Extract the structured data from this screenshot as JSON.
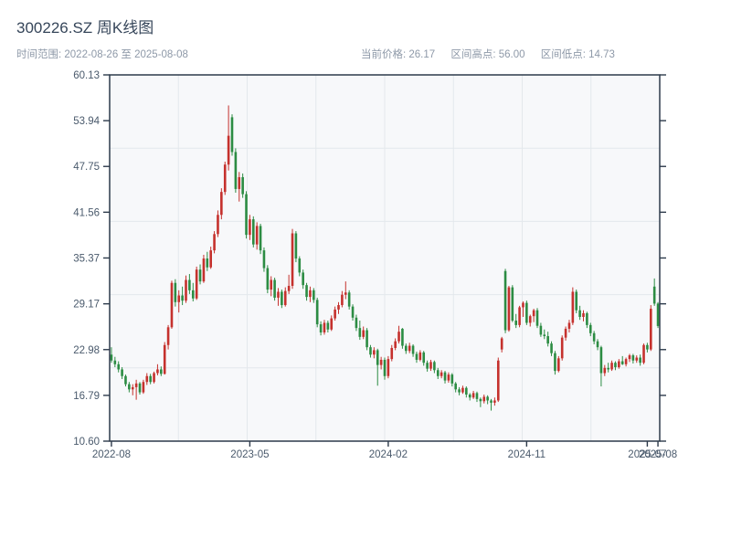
{
  "header": {
    "title": "300226.SZ 周K线图",
    "time_range": "时间范围: 2022-08-26 至 2025-08-08",
    "stats": {
      "price": "当前价格: 26.17",
      "high": "区间高点: 56.00",
      "low": "区间低点: 14.73"
    }
  },
  "chart_data": {
    "type": "candlestick",
    "title": "300226.SZ 周K线图",
    "period": "weekly",
    "date_start": "2022-08-26",
    "date_end": "2025-08-08",
    "current_price": 26.17,
    "range_high": 56.0,
    "range_low": 14.73,
    "xlabel": "",
    "ylabel": "",
    "ylim": [
      10.6,
      60.13
    ],
    "y_tick_labels": [
      "60.13",
      "53.94",
      "47.75",
      "41.56",
      "35.37",
      "29.17",
      "22.98",
      "16.79",
      "10.60"
    ],
    "x_ticks": [
      {
        "index": 0,
        "label": "2022-08"
      },
      {
        "index": 39,
        "label": "2023-05"
      },
      {
        "index": 78,
        "label": "2024-02"
      },
      {
        "index": 117,
        "label": "2024-11"
      },
      {
        "index": 151,
        "label": "2025-07"
      },
      {
        "index": 154,
        "label": "2025-08"
      }
    ],
    "grid": {
      "h_divisions": 5,
      "v_divisions": 8,
      "color": "#e4e8ec"
    },
    "plot_bg": "#f7f8fa",
    "axis_color": "#2d3a4b",
    "tick_label_color": "#4a5a6c",
    "up_color": "#c5312d",
    "down_color": "#2c8c43",
    "candles_ohlc": [
      [
        22.3,
        23.3,
        21.2,
        21.5
      ],
      [
        21.5,
        22.0,
        20.6,
        21.0
      ],
      [
        21.0,
        21.4,
        19.9,
        20.3
      ],
      [
        20.3,
        20.6,
        19.0,
        19.4
      ],
      [
        19.4,
        19.6,
        18.0,
        18.3
      ],
      [
        18.3,
        18.6,
        17.2,
        17.6
      ],
      [
        17.6,
        18.3,
        16.8,
        17.9
      ],
      [
        17.9,
        18.9,
        16.2,
        18.4
      ],
      [
        18.4,
        18.6,
        16.9,
        17.2
      ],
      [
        17.2,
        18.9,
        17.0,
        18.6
      ],
      [
        18.6,
        19.8,
        18.2,
        19.4
      ],
      [
        19.4,
        19.7,
        18.3,
        18.6
      ],
      [
        18.6,
        20.0,
        18.4,
        19.8
      ],
      [
        19.8,
        21.0,
        19.5,
        20.3
      ],
      [
        20.3,
        20.7,
        19.4,
        19.7
      ],
      [
        19.7,
        24.0,
        19.6,
        23.6
      ],
      [
        23.6,
        26.3,
        23.0,
        26.0
      ],
      [
        26.0,
        32.3,
        25.8,
        32.0
      ],
      [
        32.0,
        32.5,
        28.8,
        29.4
      ],
      [
        29.4,
        31.0,
        28.0,
        30.3
      ],
      [
        30.3,
        31.5,
        29.0,
        29.6
      ],
      [
        29.6,
        33.0,
        29.3,
        32.4
      ],
      [
        32.4,
        33.2,
        30.5,
        31.0
      ],
      [
        31.0,
        32.0,
        29.5,
        29.9
      ],
      [
        29.9,
        34.2,
        29.7,
        33.8
      ],
      [
        33.8,
        34.5,
        31.8,
        32.2
      ],
      [
        32.2,
        35.8,
        32.0,
        35.3
      ],
      [
        35.3,
        36.2,
        33.6,
        34.1
      ],
      [
        34.1,
        36.9,
        33.9,
        36.4
      ],
      [
        36.4,
        39.0,
        36.0,
        38.6
      ],
      [
        38.6,
        41.8,
        38.2,
        41.2
      ],
      [
        41.2,
        44.8,
        40.6,
        44.3
      ],
      [
        44.3,
        48.4,
        43.9,
        48.0
      ],
      [
        48.0,
        56.0,
        47.2,
        51.9
      ],
      [
        54.4,
        54.8,
        49.2,
        49.7
      ],
      [
        49.7,
        50.2,
        44.2,
        44.7
      ],
      [
        44.7,
        47.0,
        43.0,
        46.3
      ],
      [
        46.3,
        46.8,
        43.5,
        44.0
      ],
      [
        44.0,
        44.4,
        38.0,
        38.5
      ],
      [
        38.5,
        41.2,
        37.8,
        40.6
      ],
      [
        40.6,
        41.0,
        36.8,
        37.2
      ],
      [
        37.2,
        40.2,
        36.5,
        39.7
      ],
      [
        39.7,
        40.0,
        35.9,
        36.4
      ],
      [
        36.4,
        36.8,
        33.5,
        34.0
      ],
      [
        34.0,
        34.4,
        30.6,
        31.1
      ],
      [
        31.1,
        32.9,
        30.2,
        32.4
      ],
      [
        32.4,
        32.7,
        29.6,
        30.0
      ],
      [
        30.0,
        31.3,
        28.9,
        30.8
      ],
      [
        30.8,
        31.1,
        28.6,
        29.0
      ],
      [
        29.0,
        31.4,
        28.8,
        30.9
      ],
      [
        30.9,
        33.1,
        30.5,
        31.6
      ],
      [
        31.6,
        39.3,
        31.2,
        38.7
      ],
      [
        38.7,
        39.0,
        34.8,
        35.3
      ],
      [
        35.3,
        35.6,
        32.9,
        33.4
      ],
      [
        33.4,
        33.8,
        31.2,
        31.7
      ],
      [
        31.7,
        32.0,
        29.6,
        30.1
      ],
      [
        30.1,
        31.5,
        29.4,
        31.0
      ],
      [
        31.0,
        31.3,
        29.3,
        29.7
      ],
      [
        29.7,
        30.0,
        26.0,
        26.4
      ],
      [
        26.4,
        26.8,
        24.9,
        25.3
      ],
      [
        25.3,
        27.0,
        25.0,
        26.6
      ],
      [
        26.6,
        26.9,
        25.3,
        25.7
      ],
      [
        25.7,
        27.6,
        25.5,
        27.2
      ],
      [
        27.2,
        28.8,
        26.9,
        28.4
      ],
      [
        28.4,
        29.4,
        27.8,
        29.0
      ],
      [
        29.0,
        30.9,
        28.7,
        30.4
      ],
      [
        30.4,
        32.2,
        29.8,
        30.7
      ],
      [
        30.7,
        31.0,
        28.4,
        28.8
      ],
      [
        28.8,
        29.1,
        26.9,
        27.3
      ],
      [
        27.3,
        27.7,
        25.5,
        25.9
      ],
      [
        25.9,
        26.9,
        24.3,
        24.7
      ],
      [
        24.7,
        26.1,
        24.4,
        25.6
      ],
      [
        25.6,
        25.9,
        22.9,
        23.3
      ],
      [
        23.3,
        23.6,
        21.9,
        22.3
      ],
      [
        22.3,
        23.3,
        21.8,
        22.9
      ],
      [
        22.9,
        23.1,
        18.1,
        20.9
      ],
      [
        20.9,
        22.0,
        20.3,
        21.6
      ],
      [
        21.6,
        21.9,
        18.9,
        19.4
      ],
      [
        19.4,
        22.1,
        19.1,
        21.7
      ],
      [
        21.7,
        23.6,
        21.4,
        23.2
      ],
      [
        23.2,
        24.5,
        22.9,
        24.1
      ],
      [
        24.1,
        26.2,
        23.8,
        25.4
      ],
      [
        25.8,
        25.9,
        23.1,
        23.5
      ],
      [
        23.5,
        23.8,
        22.4,
        22.8
      ],
      [
        22.8,
        23.9,
        22.5,
        23.5
      ],
      [
        23.5,
        23.7,
        22.0,
        22.4
      ],
      [
        22.4,
        22.7,
        21.2,
        21.6
      ],
      [
        21.6,
        22.9,
        21.4,
        22.6
      ],
      [
        22.6,
        22.8,
        20.8,
        21.2
      ],
      [
        21.2,
        21.5,
        20.0,
        20.4
      ],
      [
        20.4,
        21.6,
        20.1,
        21.3
      ],
      [
        21.3,
        21.5,
        19.8,
        20.2
      ],
      [
        20.2,
        20.5,
        19.0,
        19.4
      ],
      [
        19.4,
        20.2,
        19.1,
        19.9
      ],
      [
        19.9,
        20.1,
        18.4,
        18.8
      ],
      [
        18.8,
        19.9,
        18.5,
        19.6
      ],
      [
        19.6,
        19.8,
        18.0,
        18.4
      ],
      [
        18.4,
        18.6,
        17.2,
        17.6
      ],
      [
        17.6,
        17.9,
        16.8,
        17.2
      ],
      [
        17.2,
        18.1,
        17.0,
        17.8
      ],
      [
        17.8,
        18.0,
        16.5,
        16.9
      ],
      [
        16.9,
        17.1,
        16.1,
        16.5
      ],
      [
        16.5,
        17.4,
        16.3,
        17.1
      ],
      [
        17.1,
        17.3,
        15.9,
        16.3
      ],
      [
        16.3,
        16.5,
        15.2,
        16.0
      ],
      [
        16.0,
        16.9,
        15.7,
        16.6
      ],
      [
        16.6,
        16.8,
        15.6,
        16.1
      ],
      [
        16.1,
        16.3,
        14.73,
        15.8
      ],
      [
        15.8,
        16.5,
        15.4,
        16.1
      ],
      [
        16.1,
        21.9,
        15.9,
        21.5
      ],
      [
        23.0,
        24.7,
        22.6,
        24.5
      ],
      [
        33.6,
        33.9,
        25.2,
        25.6
      ],
      [
        25.6,
        31.6,
        25.4,
        31.4
      ],
      [
        31.4,
        31.7,
        26.7,
        26.9
      ],
      [
        26.9,
        27.8,
        25.9,
        26.3
      ],
      [
        26.3,
        28.9,
        26.0,
        28.7
      ],
      [
        28.7,
        29.5,
        27.4,
        29.3
      ],
      [
        29.3,
        29.6,
        26.3,
        26.6
      ],
      [
        26.6,
        27.7,
        26.1,
        27.5
      ],
      [
        27.5,
        28.5,
        26.7,
        28.3
      ],
      [
        28.3,
        28.6,
        25.9,
        26.2
      ],
      [
        26.2,
        26.6,
        24.7,
        25.0
      ],
      [
        25.0,
        25.7,
        24.4,
        24.8
      ],
      [
        24.8,
        25.4,
        23.4,
        23.8
      ],
      [
        23.8,
        24.1,
        22.1,
        22.5
      ],
      [
        22.5,
        22.8,
        19.6,
        20.1
      ],
      [
        20.1,
        22.1,
        19.9,
        21.8
      ],
      [
        21.8,
        24.9,
        21.5,
        24.6
      ],
      [
        24.6,
        26.1,
        24.2,
        25.8
      ],
      [
        25.8,
        27.0,
        25.3,
        26.6
      ],
      [
        26.6,
        31.4,
        26.3,
        30.8
      ],
      [
        30.8,
        31.1,
        27.9,
        28.3
      ],
      [
        28.3,
        28.9,
        27.0,
        27.4
      ],
      [
        27.4,
        28.3,
        26.8,
        27.9
      ],
      [
        27.9,
        28.1,
        25.9,
        26.3
      ],
      [
        26.3,
        26.6,
        24.8,
        25.2
      ],
      [
        25.2,
        25.5,
        23.7,
        24.1
      ],
      [
        24.1,
        24.4,
        22.9,
        23.3
      ],
      [
        23.3,
        23.5,
        18.0,
        19.8
      ],
      [
        19.8,
        20.9,
        19.4,
        20.5
      ],
      [
        20.5,
        21.2,
        19.9,
        20.3
      ],
      [
        20.3,
        21.5,
        20.1,
        21.2
      ],
      [
        21.2,
        21.4,
        20.2,
        20.6
      ],
      [
        20.6,
        21.7,
        20.4,
        21.4
      ],
      [
        21.4,
        22.1,
        20.9,
        21.0
      ],
      [
        21.0,
        21.9,
        20.7,
        21.7
      ],
      [
        21.7,
        22.4,
        21.3,
        22.2
      ],
      [
        22.2,
        22.4,
        21.1,
        21.5
      ],
      [
        21.5,
        22.2,
        21.2,
        21.9
      ],
      [
        21.9,
        22.3,
        20.8,
        21.2
      ],
      [
        21.2,
        23.8,
        21.0,
        23.6
      ],
      [
        23.6,
        23.9,
        22.6,
        23.0
      ],
      [
        23.0,
        29.0,
        22.8,
        28.5
      ],
      [
        31.5,
        32.6,
        28.9,
        29.2
      ],
      [
        29.2,
        29.4,
        25.9,
        26.17
      ]
    ]
  }
}
